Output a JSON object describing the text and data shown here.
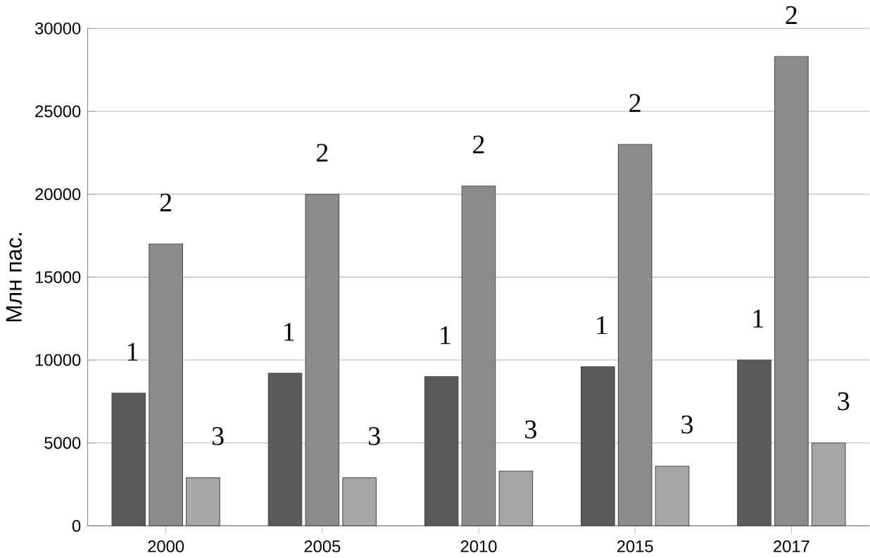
{
  "chart_data": {
    "type": "bar",
    "ylabel": "Млн пас.",
    "categories": [
      "2000",
      "2005",
      "2010",
      "2015",
      "2017"
    ],
    "series": [
      {
        "name": "1",
        "color": "#5a5a5a",
        "values": [
          8000,
          9200,
          9000,
          9600,
          10000
        ]
      },
      {
        "name": "2",
        "color": "#8c8c8c",
        "values": [
          17000,
          20000,
          20500,
          23000,
          28300
        ]
      },
      {
        "name": "3",
        "color": "#a6a6a6",
        "values": [
          2900,
          2900,
          3300,
          3600,
          5000
        ]
      }
    ],
    "ylim": [
      0,
      30000
    ],
    "yticks": [
      0,
      5000,
      10000,
      15000,
      20000,
      25000,
      30000
    ],
    "grid": "y",
    "legend": false
  }
}
